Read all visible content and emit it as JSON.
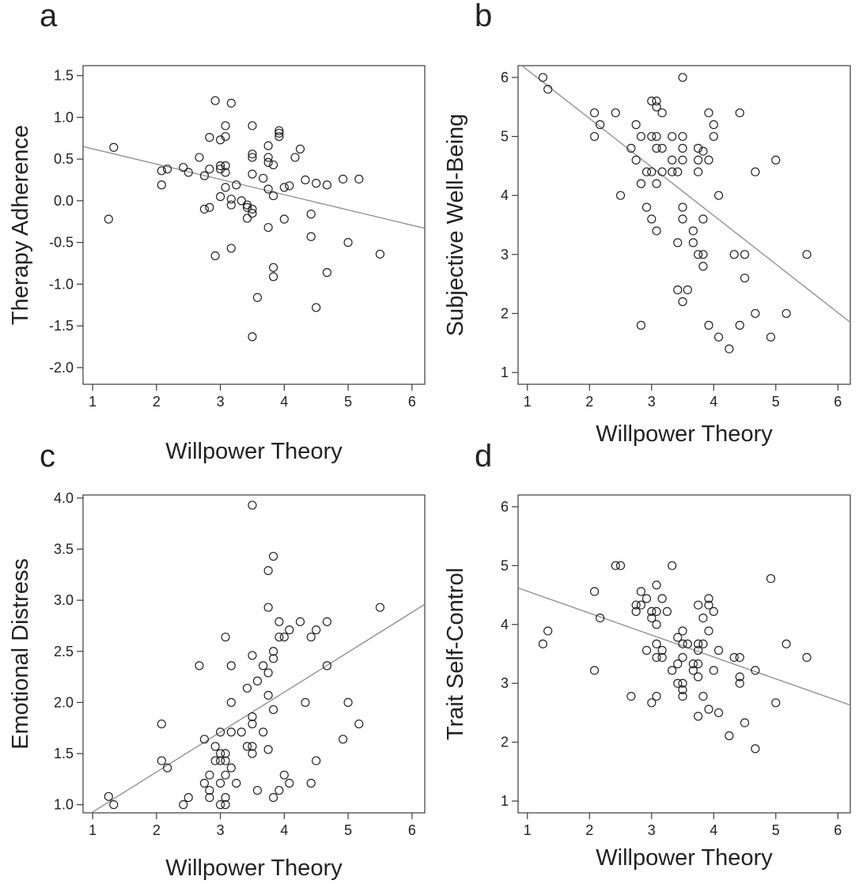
{
  "chart_data": [
    {
      "panel": "a",
      "type": "scatter",
      "xlabel": "Willpower Theory",
      "ylabel": "Therapy Adherence",
      "xlim": [
        0.85,
        6.2
      ],
      "ylim": [
        -2.2,
        1.62
      ],
      "xticks": [
        "1",
        "2",
        "3",
        "4",
        "5",
        "6"
      ],
      "yticks": [
        "-2.0",
        "-1.5",
        "-1.0",
        "-0.5",
        "0.0",
        "0.5",
        "1.0",
        "1.5"
      ],
      "grid": false,
      "trendline": {
        "x": [
          0.85,
          6.2
        ],
        "y": [
          0.65,
          -0.33
        ]
      },
      "points": [
        [
          1.25,
          -0.22
        ],
        [
          1.33,
          0.64
        ],
        [
          2.08,
          0.36
        ],
        [
          2.08,
          0.19
        ],
        [
          2.17,
          0.38
        ],
        [
          2.42,
          0.4
        ],
        [
          2.5,
          0.34
        ],
        [
          2.67,
          0.52
        ],
        [
          2.75,
          -0.1
        ],
        [
          2.75,
          0.3
        ],
        [
          2.83,
          0.38
        ],
        [
          2.83,
          0.76
        ],
        [
          2.83,
          -0.08
        ],
        [
          2.92,
          1.2
        ],
        [
          2.92,
          -0.66
        ],
        [
          3.0,
          0.42
        ],
        [
          3.0,
          0.73
        ],
        [
          3.0,
          0.38
        ],
        [
          3.0,
          0.05
        ],
        [
          3.08,
          0.9
        ],
        [
          3.08,
          0.77
        ],
        [
          3.08,
          0.42
        ],
        [
          3.08,
          0.34
        ],
        [
          3.08,
          0.16
        ],
        [
          3.17,
          1.17
        ],
        [
          3.17,
          0.02
        ],
        [
          3.17,
          -0.05
        ],
        [
          3.17,
          -0.57
        ],
        [
          3.25,
          0.19
        ],
        [
          3.33,
          0.0
        ],
        [
          3.42,
          -0.05
        ],
        [
          3.42,
          -0.08
        ],
        [
          3.42,
          -0.21
        ],
        [
          3.5,
          0.9
        ],
        [
          3.5,
          0.56
        ],
        [
          3.5,
          0.52
        ],
        [
          3.5,
          0.32
        ],
        [
          3.5,
          -0.1
        ],
        [
          3.5,
          -0.15
        ],
        [
          3.5,
          -1.63
        ],
        [
          3.58,
          -1.16
        ],
        [
          3.67,
          0.27
        ],
        [
          3.75,
          0.66
        ],
        [
          3.75,
          0.52
        ],
        [
          3.75,
          0.46
        ],
        [
          3.75,
          0.14
        ],
        [
          3.75,
          -0.32
        ],
        [
          3.83,
          0.43
        ],
        [
          3.83,
          0.06
        ],
        [
          3.83,
          -0.8
        ],
        [
          3.83,
          -0.91
        ],
        [
          3.92,
          0.84
        ],
        [
          3.92,
          0.81
        ],
        [
          3.92,
          0.77
        ],
        [
          4.0,
          0.16
        ],
        [
          4.0,
          -0.22
        ],
        [
          4.08,
          0.18
        ],
        [
          4.17,
          0.52
        ],
        [
          4.25,
          0.62
        ],
        [
          4.33,
          0.25
        ],
        [
          4.42,
          -0.16
        ],
        [
          4.42,
          -0.43
        ],
        [
          4.5,
          0.21
        ],
        [
          4.5,
          -1.28
        ],
        [
          4.67,
          0.19
        ],
        [
          4.67,
          -0.86
        ],
        [
          4.92,
          0.26
        ],
        [
          5.0,
          -0.5
        ],
        [
          5.17,
          0.26
        ],
        [
          5.5,
          -0.64
        ]
      ]
    },
    {
      "panel": "b",
      "type": "scatter",
      "xlabel": "Willpower Theory",
      "ylabel": "Subjective Well-Being",
      "xlim": [
        0.85,
        6.2
      ],
      "ylim": [
        0.8,
        6.2
      ],
      "xticks": [
        "1",
        "2",
        "3",
        "4",
        "5",
        "6"
      ],
      "yticks": [
        "1",
        "2",
        "3",
        "4",
        "5",
        "6"
      ],
      "grid": false,
      "trendline": {
        "x": [
          0.85,
          6.2
        ],
        "y": [
          6.25,
          1.85
        ]
      },
      "points": [
        [
          1.25,
          6.0
        ],
        [
          1.33,
          5.8
        ],
        [
          2.08,
          5.4
        ],
        [
          2.08,
          5.0
        ],
        [
          2.17,
          5.2
        ],
        [
          2.42,
          5.4
        ],
        [
          2.5,
          4.0
        ],
        [
          2.67,
          4.8
        ],
        [
          2.75,
          5.2
        ],
        [
          2.75,
          4.6
        ],
        [
          2.83,
          5.0
        ],
        [
          2.83,
          4.2
        ],
        [
          2.83,
          1.8
        ],
        [
          2.92,
          4.4
        ],
        [
          2.92,
          3.8
        ],
        [
          3.0,
          5.6
        ],
        [
          3.0,
          5.0
        ],
        [
          3.0,
          4.4
        ],
        [
          3.0,
          3.6
        ],
        [
          3.08,
          5.6
        ],
        [
          3.08,
          5.5
        ],
        [
          3.08,
          5.0
        ],
        [
          3.08,
          4.8
        ],
        [
          3.08,
          4.2
        ],
        [
          3.08,
          3.4
        ],
        [
          3.17,
          5.4
        ],
        [
          3.17,
          4.8
        ],
        [
          3.17,
          4.4
        ],
        [
          3.33,
          5.0
        ],
        [
          3.33,
          4.6
        ],
        [
          3.33,
          4.4
        ],
        [
          3.42,
          4.4
        ],
        [
          3.42,
          3.2
        ],
        [
          3.42,
          2.4
        ],
        [
          3.5,
          6.0
        ],
        [
          3.5,
          5.0
        ],
        [
          3.5,
          4.8
        ],
        [
          3.5,
          4.6
        ],
        [
          3.5,
          3.8
        ],
        [
          3.5,
          3.6
        ],
        [
          3.5,
          2.2
        ],
        [
          3.58,
          2.4
        ],
        [
          3.67,
          3.4
        ],
        [
          3.67,
          3.2
        ],
        [
          3.75,
          4.8
        ],
        [
          3.75,
          4.6
        ],
        [
          3.75,
          4.4
        ],
        [
          3.75,
          3.0
        ],
        [
          3.83,
          4.75
        ],
        [
          3.83,
          3.6
        ],
        [
          3.83,
          3.0
        ],
        [
          3.83,
          2.8
        ],
        [
          3.92,
          5.4
        ],
        [
          3.92,
          4.6
        ],
        [
          3.92,
          1.8
        ],
        [
          4.0,
          5.2
        ],
        [
          4.0,
          5.0
        ],
        [
          4.08,
          4.0
        ],
        [
          4.08,
          1.6
        ],
        [
          4.25,
          1.4
        ],
        [
          4.33,
          3.0
        ],
        [
          4.42,
          5.4
        ],
        [
          4.42,
          1.8
        ],
        [
          4.5,
          3.0
        ],
        [
          4.5,
          2.6
        ],
        [
          4.67,
          4.4
        ],
        [
          4.67,
          2.0
        ],
        [
          4.92,
          1.6
        ],
        [
          5.0,
          4.6
        ],
        [
          5.17,
          2.0
        ],
        [
          5.5,
          3.0
        ]
      ]
    },
    {
      "panel": "c",
      "type": "scatter",
      "xlabel": "Willpower Theory",
      "ylabel": "Emotional Distress",
      "xlim": [
        0.85,
        6.2
      ],
      "ylim": [
        0.92,
        4.03
      ],
      "xticks": [
        "1",
        "2",
        "3",
        "4",
        "5",
        "6"
      ],
      "yticks": [
        "1.0",
        "1.5",
        "2.0",
        "2.5",
        "3.0",
        "3.5",
        "4.0"
      ],
      "grid": false,
      "trendline": {
        "x": [
          0.85,
          6.2
        ],
        "y": [
          0.87,
          2.96
        ]
      },
      "points": [
        [
          1.25,
          1.08
        ],
        [
          1.33,
          1.0
        ],
        [
          2.08,
          1.79
        ],
        [
          2.08,
          1.43
        ],
        [
          2.17,
          1.36
        ],
        [
          2.42,
          1.0
        ],
        [
          2.5,
          1.07
        ],
        [
          2.67,
          2.36
        ],
        [
          2.75,
          1.64
        ],
        [
          2.75,
          1.21
        ],
        [
          2.83,
          1.29
        ],
        [
          2.83,
          1.14
        ],
        [
          2.83,
          1.07
        ],
        [
          2.92,
          1.57
        ],
        [
          2.92,
          1.43
        ],
        [
          3.0,
          1.71
        ],
        [
          3.0,
          1.5
        ],
        [
          3.0,
          1.43
        ],
        [
          3.0,
          1.21
        ],
        [
          3.0,
          1.0
        ],
        [
          3.08,
          2.64
        ],
        [
          3.08,
          1.5
        ],
        [
          3.08,
          1.43
        ],
        [
          3.08,
          1.29
        ],
        [
          3.08,
          1.07
        ],
        [
          3.08,
          1.0
        ],
        [
          3.17,
          2.36
        ],
        [
          3.17,
          2.0
        ],
        [
          3.17,
          1.71
        ],
        [
          3.17,
          1.36
        ],
        [
          3.25,
          1.21
        ],
        [
          3.33,
          1.71
        ],
        [
          3.42,
          2.14
        ],
        [
          3.42,
          1.57
        ],
        [
          3.5,
          3.93
        ],
        [
          3.5,
          2.46
        ],
        [
          3.5,
          1.86
        ],
        [
          3.5,
          1.79
        ],
        [
          3.5,
          1.57
        ],
        [
          3.5,
          1.5
        ],
        [
          3.58,
          2.21
        ],
        [
          3.58,
          1.14
        ],
        [
          3.67,
          2.36
        ],
        [
          3.67,
          1.71
        ],
        [
          3.75,
          3.29
        ],
        [
          3.75,
          2.93
        ],
        [
          3.75,
          2.29
        ],
        [
          3.75,
          2.07
        ],
        [
          3.75,
          1.54
        ],
        [
          3.83,
          3.43
        ],
        [
          3.83,
          2.5
        ],
        [
          3.83,
          2.43
        ],
        [
          3.83,
          1.93
        ],
        [
          3.83,
          1.07
        ],
        [
          3.92,
          2.79
        ],
        [
          3.92,
          2.64
        ],
        [
          3.92,
          1.14
        ],
        [
          4.0,
          2.64
        ],
        [
          4.0,
          1.29
        ],
        [
          4.08,
          2.71
        ],
        [
          4.08,
          1.21
        ],
        [
          4.25,
          2.79
        ],
        [
          4.33,
          2.0
        ],
        [
          4.42,
          2.64
        ],
        [
          4.42,
          1.21
        ],
        [
          4.5,
          2.71
        ],
        [
          4.5,
          1.43
        ],
        [
          4.67,
          2.79
        ],
        [
          4.67,
          2.36
        ],
        [
          4.92,
          1.64
        ],
        [
          5.0,
          2.0
        ],
        [
          5.17,
          1.79
        ],
        [
          5.5,
          2.93
        ]
      ]
    },
    {
      "panel": "d",
      "type": "scatter",
      "xlabel": "Willpower Theory",
      "ylabel": "Trait Self-Control",
      "xlim": [
        0.85,
        6.2
      ],
      "ylim": [
        0.8,
        6.2
      ],
      "xticks": [
        "1",
        "2",
        "3",
        "4",
        "5",
        "6"
      ],
      "yticks": [
        "1",
        "2",
        "3",
        "4",
        "5",
        "6"
      ],
      "grid": false,
      "trendline": {
        "x": [
          0.85,
          6.2
        ],
        "y": [
          4.62,
          2.63
        ]
      },
      "points": [
        [
          1.25,
          3.67
        ],
        [
          1.33,
          3.89
        ],
        [
          2.08,
          4.56
        ],
        [
          2.08,
          3.22
        ],
        [
          2.17,
          4.11
        ],
        [
          2.42,
          5.0
        ],
        [
          2.5,
          5.0
        ],
        [
          2.67,
          2.78
        ],
        [
          2.75,
          4.33
        ],
        [
          2.75,
          4.22
        ],
        [
          2.83,
          4.56
        ],
        [
          2.83,
          4.33
        ],
        [
          2.92,
          4.44
        ],
        [
          2.92,
          3.56
        ],
        [
          3.0,
          4.22
        ],
        [
          3.0,
          4.11
        ],
        [
          3.0,
          2.67
        ],
        [
          3.08,
          4.67
        ],
        [
          3.08,
          4.22
        ],
        [
          3.08,
          4.0
        ],
        [
          3.08,
          3.67
        ],
        [
          3.08,
          3.44
        ],
        [
          3.08,
          2.78
        ],
        [
          3.17,
          4.44
        ],
        [
          3.17,
          3.56
        ],
        [
          3.17,
          3.44
        ],
        [
          3.25,
          4.22
        ],
        [
          3.33,
          5.0
        ],
        [
          3.33,
          3.22
        ],
        [
          3.42,
          3.78
        ],
        [
          3.42,
          3.33
        ],
        [
          3.42,
          3.0
        ],
        [
          3.5,
          3.89
        ],
        [
          3.5,
          3.67
        ],
        [
          3.5,
          3.44
        ],
        [
          3.5,
          3.0
        ],
        [
          3.5,
          2.89
        ],
        [
          3.5,
          2.78
        ],
        [
          3.58,
          3.67
        ],
        [
          3.67,
          3.33
        ],
        [
          3.67,
          3.22
        ],
        [
          3.75,
          4.33
        ],
        [
          3.75,
          3.67
        ],
        [
          3.75,
          3.56
        ],
        [
          3.75,
          3.33
        ],
        [
          3.75,
          3.11
        ],
        [
          3.75,
          2.44
        ],
        [
          3.83,
          4.11
        ],
        [
          3.83,
          3.67
        ],
        [
          3.83,
          2.78
        ],
        [
          3.92,
          4.44
        ],
        [
          3.92,
          4.33
        ],
        [
          3.92,
          3.89
        ],
        [
          3.92,
          2.56
        ],
        [
          4.0,
          4.22
        ],
        [
          4.0,
          3.22
        ],
        [
          4.08,
          3.56
        ],
        [
          4.08,
          2.5
        ],
        [
          4.25,
          2.11
        ],
        [
          4.33,
          3.44
        ],
        [
          4.42,
          3.44
        ],
        [
          4.42,
          3.11
        ],
        [
          4.42,
          3.0
        ],
        [
          4.5,
          2.33
        ],
        [
          4.67,
          3.22
        ],
        [
          4.67,
          1.89
        ],
        [
          4.92,
          4.78
        ],
        [
          5.0,
          2.67
        ],
        [
          5.17,
          3.67
        ],
        [
          5.5,
          3.44
        ]
      ]
    }
  ]
}
